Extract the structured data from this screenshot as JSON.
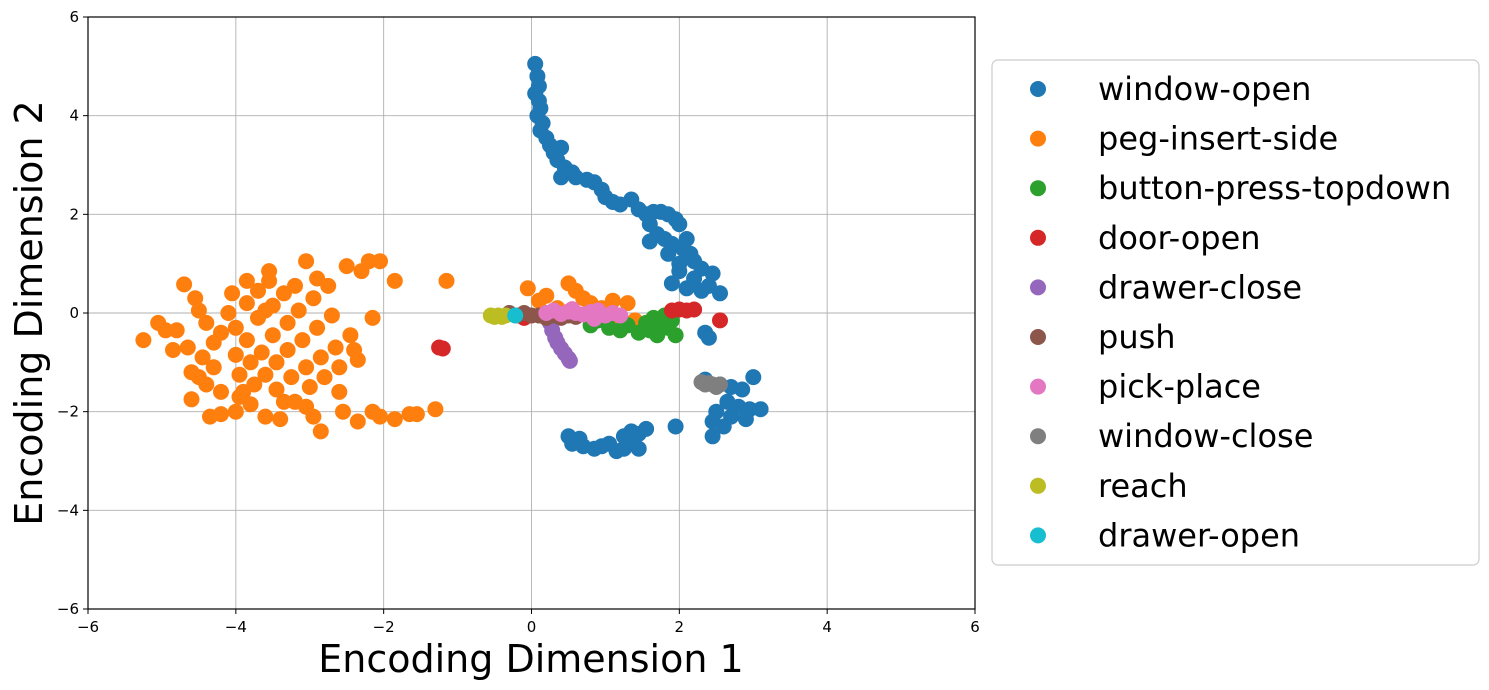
{
  "chart_data": {
    "type": "scatter",
    "title": "",
    "xlabel": "Encoding Dimension 1",
    "ylabel": "Encoding Dimension 2",
    "xlim": [
      -6,
      6
    ],
    "ylim": [
      -6,
      6
    ],
    "xticks": [
      -6,
      -4,
      -2,
      0,
      2,
      4,
      6
    ],
    "yticks": [
      -6,
      -4,
      -2,
      0,
      2,
      4,
      6
    ],
    "xtick_labels": [
      "−6",
      "−4",
      "−2",
      "0",
      "2",
      "4",
      "6"
    ],
    "ytick_labels": [
      "−6",
      "−4",
      "−2",
      "0",
      "2",
      "4",
      "6"
    ],
    "grid": true,
    "legend_position": "outside-right",
    "series": [
      {
        "name": "window-open",
        "color": "#1f77b4",
        "points": [
          [
            0.05,
            5.05
          ],
          [
            0.08,
            4.8
          ],
          [
            0.1,
            4.6
          ],
          [
            0.05,
            4.45
          ],
          [
            0.1,
            4.3
          ],
          [
            0.12,
            4.15
          ],
          [
            0.08,
            4.0
          ],
          [
            0.15,
            3.85
          ],
          [
            0.12,
            3.7
          ],
          [
            0.2,
            3.55
          ],
          [
            0.25,
            3.4
          ],
          [
            0.3,
            3.25
          ],
          [
            0.4,
            3.35
          ],
          [
            0.35,
            3.1
          ],
          [
            0.45,
            2.95
          ],
          [
            0.55,
            2.85
          ],
          [
            0.4,
            2.75
          ],
          [
            0.6,
            2.75
          ],
          [
            0.75,
            2.7
          ],
          [
            0.85,
            2.65
          ],
          [
            0.95,
            2.5
          ],
          [
            1.0,
            2.35
          ],
          [
            1.1,
            2.25
          ],
          [
            1.2,
            2.2
          ],
          [
            1.35,
            2.3
          ],
          [
            1.45,
            2.1
          ],
          [
            1.55,
            2.0
          ],
          [
            1.65,
            2.05
          ],
          [
            1.75,
            2.05
          ],
          [
            1.85,
            2.0
          ],
          [
            1.95,
            1.9
          ],
          [
            2.0,
            1.8
          ],
          [
            1.6,
            1.8
          ],
          [
            1.7,
            1.6
          ],
          [
            1.8,
            1.5
          ],
          [
            1.6,
            1.45
          ],
          [
            1.9,
            1.4
          ],
          [
            2.1,
            1.5
          ],
          [
            2.05,
            1.3
          ],
          [
            1.85,
            1.2
          ],
          [
            2.15,
            1.2
          ],
          [
            2.2,
            1.05
          ],
          [
            2.0,
            1.0
          ],
          [
            2.3,
            0.9
          ],
          [
            2.0,
            0.85
          ],
          [
            2.2,
            0.7
          ],
          [
            2.45,
            0.8
          ],
          [
            2.4,
            0.55
          ],
          [
            2.55,
            0.4
          ],
          [
            2.3,
            0.45
          ],
          [
            2.1,
            0.5
          ],
          [
            1.9,
            0.6
          ],
          [
            2.35,
            -0.4
          ],
          [
            2.4,
            -0.5
          ],
          [
            2.35,
            -1.35
          ],
          [
            2.55,
            -1.45
          ],
          [
            2.7,
            -1.5
          ],
          [
            2.85,
            -1.55
          ],
          [
            3.0,
            -1.3
          ],
          [
            2.65,
            -1.8
          ],
          [
            2.8,
            -1.9
          ],
          [
            2.95,
            -1.95
          ],
          [
            3.1,
            -1.95
          ],
          [
            2.5,
            -2.0
          ],
          [
            2.7,
            -2.1
          ],
          [
            2.9,
            -2.15
          ],
          [
            2.6,
            -2.3
          ],
          [
            2.45,
            -2.2
          ],
          [
            2.45,
            -2.5
          ],
          [
            0.5,
            -2.5
          ],
          [
            0.55,
            -2.65
          ],
          [
            0.65,
            -2.55
          ],
          [
            0.7,
            -2.7
          ],
          [
            0.85,
            -2.75
          ],
          [
            0.95,
            -2.7
          ],
          [
            1.05,
            -2.65
          ],
          [
            1.15,
            -2.8
          ],
          [
            1.25,
            -2.75
          ],
          [
            1.35,
            -2.6
          ],
          [
            1.45,
            -2.45
          ],
          [
            1.55,
            -2.35
          ],
          [
            1.35,
            -2.4
          ],
          [
            1.25,
            -2.5
          ],
          [
            1.45,
            -2.75
          ],
          [
            1.95,
            -2.3
          ]
        ]
      },
      {
        "name": "peg-insert-side",
        "color": "#ff7f0e",
        "points": [
          [
            -5.25,
            -0.55
          ],
          [
            -5.05,
            -0.2
          ],
          [
            -4.95,
            -0.35
          ],
          [
            -4.8,
            -0.35
          ],
          [
            -4.85,
            -0.75
          ],
          [
            -4.65,
            -0.7
          ],
          [
            -4.7,
            0.58
          ],
          [
            -4.55,
            0.3
          ],
          [
            -4.5,
            0.05
          ],
          [
            -4.4,
            -0.2
          ],
          [
            -4.6,
            -1.2
          ],
          [
            -4.5,
            -1.3
          ],
          [
            -4.6,
            -1.75
          ],
          [
            -4.4,
            -1.45
          ],
          [
            -4.45,
            -0.9
          ],
          [
            -4.3,
            -0.6
          ],
          [
            -4.3,
            -1.1
          ],
          [
            -4.2,
            -1.6
          ],
          [
            -4.2,
            -2.05
          ],
          [
            -4.35,
            -2.1
          ],
          [
            -4.1,
            0.0
          ],
          [
            -4.05,
            0.4
          ],
          [
            -4.0,
            -0.3
          ],
          [
            -4.0,
            -0.85
          ],
          [
            -3.95,
            -1.25
          ],
          [
            -3.95,
            -1.7
          ],
          [
            -4.0,
            -2.0
          ],
          [
            -3.85,
            0.2
          ],
          [
            -3.85,
            -0.55
          ],
          [
            -3.8,
            -1.0
          ],
          [
            -3.75,
            -1.45
          ],
          [
            -3.8,
            -1.85
          ],
          [
            -3.7,
            0.45
          ],
          [
            -3.7,
            -0.1
          ],
          [
            -3.65,
            -0.8
          ],
          [
            -3.6,
            -1.25
          ],
          [
            -3.6,
            -2.1
          ],
          [
            -3.55,
            0.65
          ],
          [
            -3.5,
            0.15
          ],
          [
            -3.5,
            -0.45
          ],
          [
            -3.45,
            -1.0
          ],
          [
            -3.45,
            -1.55
          ],
          [
            -3.4,
            -2.15
          ],
          [
            -3.35,
            0.4
          ],
          [
            -3.3,
            -0.2
          ],
          [
            -3.3,
            -0.75
          ],
          [
            -3.25,
            -1.3
          ],
          [
            -3.2,
            -1.8
          ],
          [
            -3.2,
            0.55
          ],
          [
            -3.15,
            0.05
          ],
          [
            -3.1,
            -0.55
          ],
          [
            -3.05,
            -1.1
          ],
          [
            -3.0,
            -1.5
          ],
          [
            -2.95,
            -2.1
          ],
          [
            -2.95,
            0.3
          ],
          [
            -2.9,
            -0.3
          ],
          [
            -2.85,
            -0.9
          ],
          [
            -2.8,
            -1.3
          ],
          [
            -2.85,
            -2.4
          ],
          [
            -2.75,
            0.55
          ],
          [
            -2.7,
            -0.05
          ],
          [
            -2.65,
            -0.7
          ],
          [
            -2.6,
            -1.1
          ],
          [
            -2.55,
            -2.0
          ],
          [
            -2.5,
            0.95
          ],
          [
            -2.45,
            -0.45
          ],
          [
            -2.4,
            -0.75
          ],
          [
            -2.35,
            -2.2
          ],
          [
            -2.15,
            -2.0
          ],
          [
            -2.05,
            -2.1
          ],
          [
            -1.85,
            -2.15
          ],
          [
            -1.65,
            -2.05
          ],
          [
            -1.55,
            -2.05
          ],
          [
            -1.3,
            -1.95
          ],
          [
            -2.05,
            1.05
          ],
          [
            -2.2,
            1.05
          ],
          [
            -2.3,
            0.85
          ],
          [
            -1.85,
            0.65
          ],
          [
            -1.15,
            0.65
          ],
          [
            -2.15,
            -0.1
          ],
          [
            -3.05,
            1.05
          ],
          [
            -3.55,
            0.85
          ],
          [
            -3.85,
            0.65
          ],
          [
            -4.2,
            -0.4
          ],
          [
            -3.35,
            -1.8
          ],
          [
            -3.05,
            -1.9
          ],
          [
            -2.6,
            -1.6
          ],
          [
            -2.35,
            -0.95
          ],
          [
            -2.9,
            0.7
          ],
          [
            -3.6,
            0.05
          ],
          [
            -3.9,
            -1.6
          ],
          [
            -0.05,
            0.5
          ],
          [
            0.1,
            0.25
          ],
          [
            0.2,
            0.35
          ],
          [
            0.35,
            0.1
          ],
          [
            0.5,
            0.6
          ],
          [
            0.6,
            0.45
          ],
          [
            0.7,
            0.3
          ],
          [
            0.8,
            0.2
          ],
          [
            0.95,
            0.1
          ],
          [
            1.1,
            0.25
          ],
          [
            1.2,
            -0.1
          ],
          [
            1.3,
            0.2
          ],
          [
            1.4,
            -0.15
          ]
        ]
      },
      {
        "name": "button-press-topdown",
        "color": "#2ca02c",
        "points": [
          [
            0.8,
            -0.25
          ],
          [
            0.9,
            -0.15
          ],
          [
            1.05,
            -0.3
          ],
          [
            1.2,
            -0.35
          ],
          [
            1.3,
            -0.25
          ],
          [
            1.45,
            -0.4
          ],
          [
            1.6,
            -0.35
          ],
          [
            1.7,
            -0.45
          ],
          [
            1.85,
            -0.3
          ],
          [
            1.95,
            -0.45
          ],
          [
            1.75,
            -0.2
          ],
          [
            1.55,
            -0.2
          ],
          [
            1.65,
            -0.1
          ],
          [
            1.8,
            -0.05
          ],
          [
            1.9,
            -0.15
          ]
        ]
      },
      {
        "name": "door-open",
        "color": "#d62728",
        "points": [
          [
            -1.25,
            -0.7
          ],
          [
            -1.2,
            -0.72
          ],
          [
            -0.1,
            -0.1
          ],
          [
            -0.05,
            -0.05
          ],
          [
            1.9,
            0.05
          ],
          [
            2.0,
            0.07
          ],
          [
            2.1,
            0.05
          ],
          [
            2.2,
            0.07
          ],
          [
            2.55,
            -0.15
          ]
        ]
      },
      {
        "name": "drawer-close",
        "color": "#9467bd",
        "points": [
          [
            0.2,
            -0.1
          ],
          [
            0.25,
            -0.2
          ],
          [
            0.28,
            -0.35
          ],
          [
            0.32,
            -0.5
          ],
          [
            0.35,
            -0.6
          ],
          [
            0.4,
            -0.72
          ],
          [
            0.45,
            -0.82
          ],
          [
            0.5,
            -0.92
          ],
          [
            0.52,
            -0.97
          ]
        ]
      },
      {
        "name": "push",
        "color": "#8c564b",
        "points": [
          [
            -0.3,
            0.0
          ],
          [
            -0.2,
            -0.05
          ],
          [
            -0.1,
            0.0
          ],
          [
            0.0,
            -0.05
          ],
          [
            0.1,
            -0.05
          ],
          [
            0.2,
            -0.1
          ],
          [
            0.3,
            -0.05
          ],
          [
            0.4,
            -0.1
          ],
          [
            0.5,
            -0.05
          ],
          [
            0.6,
            -0.08
          ]
        ]
      },
      {
        "name": "pick-place",
        "color": "#e377c2",
        "points": [
          [
            0.2,
            0.0
          ],
          [
            0.3,
            0.05
          ],
          [
            0.4,
            -0.02
          ],
          [
            0.5,
            0.03
          ],
          [
            0.6,
            0.0
          ],
          [
            0.7,
            -0.03
          ],
          [
            0.8,
            0.02
          ],
          [
            0.9,
            0.05
          ],
          [
            1.0,
            -0.05
          ],
          [
            1.1,
            0.0
          ],
          [
            1.2,
            -0.05
          ],
          [
            0.85,
            -0.12
          ],
          [
            0.55,
            0.08
          ]
        ]
      },
      {
        "name": "window-close",
        "color": "#7f7f7f",
        "points": [
          [
            2.3,
            -1.4
          ],
          [
            2.35,
            -1.45
          ],
          [
            2.4,
            -1.42
          ],
          [
            2.45,
            -1.45
          ],
          [
            2.5,
            -1.5
          ],
          [
            2.55,
            -1.45
          ]
        ]
      },
      {
        "name": "reach",
        "color": "#bcbd22",
        "points": [
          [
            -0.55,
            -0.05
          ],
          [
            -0.5,
            -0.08
          ],
          [
            -0.45,
            -0.05
          ],
          [
            -0.4,
            -0.08
          ],
          [
            -0.35,
            -0.05
          ]
        ]
      },
      {
        "name": "drawer-open",
        "color": "#17becf",
        "points": [
          [
            -0.22,
            -0.05
          ]
        ]
      }
    ]
  }
}
